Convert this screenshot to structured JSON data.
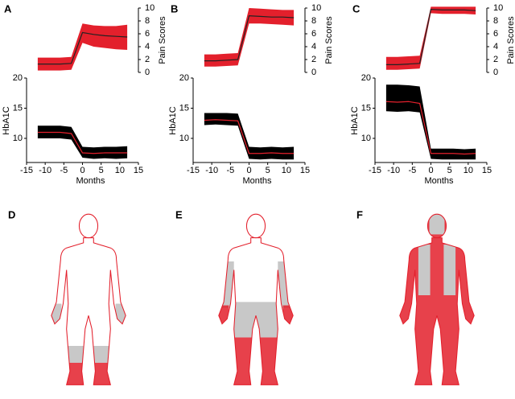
{
  "chart_data": [
    {
      "type": "line",
      "panel": "A",
      "xlabel": "Months",
      "ylabel": "HbA1C",
      "y2label": "Pain Scores",
      "x": [
        -12,
        -9,
        -6,
        -3,
        0,
        3,
        6,
        9,
        12
      ],
      "xlim": [
        -15,
        15
      ],
      "xticks": [
        -15,
        -10,
        -5,
        0,
        5,
        10,
        15
      ],
      "ylim": [
        6,
        20
      ],
      "yticks": [
        10,
        15,
        20
      ],
      "y2lim": [
        0,
        10
      ],
      "y2ticks": [
        0,
        2,
        4,
        6,
        8,
        10
      ],
      "series": [
        {
          "axis": "y2",
          "color": "#222222",
          "band_color": "#e3202c",
          "values": [
            1.3,
            1.3,
            1.3,
            1.4,
            6.2,
            5.9,
            5.7,
            5.6,
            5.5
          ],
          "lower": [
            0.3,
            0.3,
            0.3,
            0.4,
            4.6,
            4.0,
            3.8,
            3.6,
            3.5
          ],
          "upper": [
            2.3,
            2.3,
            2.3,
            2.4,
            7.6,
            7.3,
            7.2,
            7.2,
            7.4
          ]
        },
        {
          "axis": "y",
          "color": "#e3202c",
          "band_color": "#000000",
          "values": [
            11.0,
            11.0,
            11.0,
            10.8,
            7.6,
            7.5,
            7.6,
            7.6,
            7.6
          ],
          "lower": [
            10.0,
            10.0,
            10.0,
            9.8,
            6.8,
            6.6,
            6.7,
            6.6,
            6.7
          ],
          "upper": [
            12.1,
            12.1,
            12.1,
            11.9,
            8.6,
            8.5,
            8.6,
            8.6,
            8.7
          ]
        }
      ]
    },
    {
      "type": "line",
      "panel": "B",
      "xlabel": "Months",
      "ylabel": "HbA1C",
      "y2label": "Pain Scores",
      "x": [
        -12,
        -9,
        -6,
        -3,
        0,
        3,
        6,
        9,
        12
      ],
      "xlim": [
        -15,
        15
      ],
      "xticks": [
        -15,
        -10,
        -5,
        0,
        5,
        10,
        15
      ],
      "ylim": [
        6,
        20
      ],
      "yticks": [
        10,
        15,
        20
      ],
      "y2lim": [
        0,
        10
      ],
      "y2ticks": [
        0,
        2,
        4,
        6,
        8,
        10
      ],
      "series": [
        {
          "axis": "y2",
          "color": "#222222",
          "band_color": "#e3202c",
          "values": [
            1.8,
            1.8,
            1.9,
            2.0,
            8.8,
            8.7,
            8.6,
            8.6,
            8.5
          ],
          "lower": [
            0.9,
            0.9,
            1.0,
            1.1,
            7.6,
            7.6,
            7.5,
            7.4,
            7.3
          ],
          "upper": [
            2.8,
            2.8,
            2.9,
            3.0,
            10.0,
            9.9,
            9.8,
            9.7,
            9.7
          ]
        },
        {
          "axis": "y",
          "color": "#e3202c",
          "band_color": "#000000",
          "values": [
            13.0,
            13.1,
            13.0,
            12.9,
            7.5,
            7.5,
            7.6,
            7.5,
            7.5
          ],
          "lower": [
            12.2,
            12.3,
            12.2,
            12.1,
            6.6,
            6.5,
            6.6,
            6.5,
            6.5
          ],
          "upper": [
            14.2,
            14.2,
            14.2,
            14.1,
            8.6,
            8.5,
            8.6,
            8.5,
            8.6
          ]
        }
      ]
    },
    {
      "type": "line",
      "panel": "C",
      "xlabel": "Months",
      "ylabel": "HbA1C",
      "y2label": "Pain Scores",
      "x": [
        -12,
        -9,
        -6,
        -3,
        0,
        3,
        6,
        9,
        12
      ],
      "xlim": [
        -15,
        15
      ],
      "xticks": [
        -15,
        -10,
        -5,
        0,
        5,
        10,
        15
      ],
      "ylim": [
        6,
        20
      ],
      "yticks": [
        10,
        15,
        20
      ],
      "y2lim": [
        0,
        10
      ],
      "y2ticks": [
        0,
        2,
        4,
        6,
        8,
        10
      ],
      "series": [
        {
          "axis": "y2",
          "color": "#222222",
          "band_color": "#e3202c",
          "values": [
            1.2,
            1.2,
            1.3,
            1.4,
            9.8,
            9.7,
            9.7,
            9.7,
            9.6
          ],
          "lower": [
            0.4,
            0.4,
            0.5,
            0.6,
            9.2,
            9.1,
            9.1,
            9.1,
            9.0
          ],
          "upper": [
            2.4,
            2.4,
            2.5,
            2.6,
            10.2,
            10.2,
            10.2,
            10.2,
            10.2
          ]
        },
        {
          "axis": "y",
          "color": "#e3202c",
          "band_color": "#000000",
          "values": [
            16.1,
            16.0,
            16.1,
            15.8,
            7.5,
            7.5,
            7.5,
            7.4,
            7.5
          ],
          "lower": [
            14.5,
            14.4,
            14.5,
            14.3,
            6.6,
            6.5,
            6.5,
            6.5,
            6.5
          ],
          "upper": [
            18.9,
            18.9,
            18.8,
            18.6,
            8.3,
            8.3,
            8.3,
            8.2,
            8.3
          ]
        }
      ]
    }
  ],
  "body_maps": [
    {
      "label": "D"
    },
    {
      "label": "E"
    },
    {
      "label": "F"
    }
  ]
}
